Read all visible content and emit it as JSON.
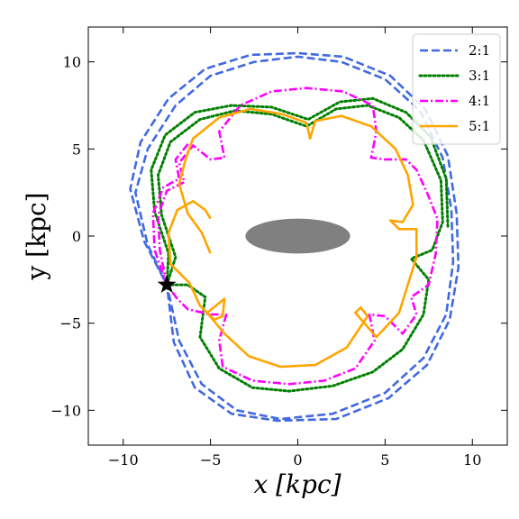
{
  "chart_data": {
    "type": "line",
    "xlabel": "x [kpc]",
    "ylabel": "y [kpc]",
    "xlim": [
      -12,
      12
    ],
    "ylim": [
      -12,
      12
    ],
    "xticks": [
      -10,
      -5,
      0,
      5,
      10
    ],
    "yticks": [
      -10,
      -5,
      0,
      5,
      10
    ],
    "xtick_labels": [
      "−10",
      "−5",
      "0",
      "5",
      "10"
    ],
    "ytick_labels": [
      "−10",
      "−5",
      "0",
      "5",
      "10"
    ],
    "grid": false,
    "legend_position": "top-right",
    "bar": {
      "center": [
        0,
        0
      ],
      "semi_axes": [
        3.0,
        1.0
      ],
      "color": "#808080"
    },
    "sun_marker": {
      "x": -7.5,
      "y": -2.8,
      "symbol": "star"
    },
    "series": [
      {
        "name": "2:1",
        "color": "#4169E1",
        "style": "dashed",
        "points": [
          [
            -7.5,
            -2.8
          ],
          [
            -8.6,
            -0.5
          ],
          [
            -9.3,
            2.5
          ],
          [
            -8.6,
            5.0
          ],
          [
            -7.0,
            7.5
          ],
          [
            -5.0,
            9.2
          ],
          [
            -2.5,
            10.0
          ],
          [
            0,
            10.3
          ],
          [
            2.5,
            10.0
          ],
          [
            5.0,
            9.0
          ],
          [
            7.0,
            7.2
          ],
          [
            8.3,
            4.5
          ],
          [
            8.8,
            1.5
          ],
          [
            8.9,
            -1.5
          ],
          [
            8.5,
            -4.5
          ],
          [
            7.2,
            -7.0
          ],
          [
            5.0,
            -9.0
          ],
          [
            2.0,
            -10.2
          ],
          [
            -1.0,
            -10.5
          ],
          [
            -3.5,
            -10.0
          ],
          [
            -5.5,
            -8.5
          ],
          [
            -6.8,
            -6.0
          ],
          [
            -7.5,
            -2.8
          ],
          [
            -8.8,
            -0.3
          ],
          [
            -9.6,
            2.7
          ],
          [
            -9.0,
            5.4
          ],
          [
            -7.4,
            7.9
          ],
          [
            -5.3,
            9.6
          ],
          [
            -2.7,
            10.4
          ],
          [
            0,
            10.5
          ],
          [
            2.6,
            10.3
          ],
          [
            5.3,
            9.2
          ],
          [
            7.3,
            7.3
          ],
          [
            8.6,
            4.6
          ],
          [
            9.1,
            1.3
          ],
          [
            9.2,
            -1.8
          ],
          [
            8.7,
            -4.8
          ],
          [
            7.4,
            -7.4
          ],
          [
            5.2,
            -9.3
          ],
          [
            2.2,
            -10.5
          ],
          [
            -1.2,
            -10.6
          ],
          [
            -3.8,
            -10.2
          ],
          [
            -5.9,
            -8.7
          ],
          [
            -7.1,
            -6.1
          ],
          [
            -7.5,
            -2.8
          ]
        ]
      },
      {
        "name": "3:1",
        "color": "#008000",
        "style": "dotted",
        "points": [
          [
            -7.5,
            -2.8
          ],
          [
            -7.0,
            -1.2
          ],
          [
            -7.8,
            1.2
          ],
          [
            -8.0,
            3.5
          ],
          [
            -7.3,
            5.4
          ],
          [
            -5.6,
            6.7
          ],
          [
            -3.6,
            7.2
          ],
          [
            -1.5,
            7.0
          ],
          [
            0.5,
            6.3
          ],
          [
            2.2,
            7.3
          ],
          [
            4.0,
            7.5
          ],
          [
            5.8,
            6.8
          ],
          [
            7.2,
            5.5
          ],
          [
            8.2,
            3.2
          ],
          [
            8.3,
            0.8
          ],
          [
            7.7,
            -0.8
          ],
          [
            6.5,
            -1.3
          ],
          [
            7.5,
            -2.5
          ],
          [
            7.2,
            -4.5
          ],
          [
            6.0,
            -6.5
          ],
          [
            4.3,
            -7.8
          ],
          [
            2.0,
            -8.6
          ],
          [
            -0.5,
            -8.9
          ],
          [
            -2.6,
            -8.7
          ],
          [
            -4.5,
            -7.6
          ],
          [
            -5.6,
            -5.8
          ],
          [
            -5.3,
            -3.5
          ],
          [
            -6.3,
            -2.8
          ],
          [
            -7.5,
            -2.8
          ],
          [
            -7.4,
            -1.0
          ],
          [
            -8.2,
            1.4
          ],
          [
            -8.4,
            3.8
          ],
          [
            -7.6,
            5.8
          ],
          [
            -5.9,
            7.1
          ],
          [
            -3.8,
            7.5
          ],
          [
            -1.5,
            7.4
          ],
          [
            0.6,
            6.7
          ],
          [
            2.4,
            7.7
          ],
          [
            4.3,
            7.9
          ],
          [
            6.2,
            7.1
          ],
          [
            7.6,
            5.7
          ],
          [
            8.5,
            3.3
          ],
          [
            8.6,
            0.5
          ]
        ]
      },
      {
        "name": "4:1",
        "color": "#FF00FF",
        "style": "dashdot",
        "points": [
          [
            -7.5,
            -2.8
          ],
          [
            -7.9,
            -0.8
          ],
          [
            -8.0,
            1.2
          ],
          [
            -7.5,
            2.6
          ],
          [
            -6.5,
            3.1
          ],
          [
            -6.8,
            4.2
          ],
          [
            -6.0,
            5.2
          ],
          [
            -5.0,
            4.4
          ],
          [
            -4.2,
            4.5
          ],
          [
            -4.5,
            6.0
          ],
          [
            -3.3,
            7.5
          ],
          [
            -1.5,
            8.3
          ],
          [
            0.5,
            8.5
          ],
          [
            2.6,
            8.3
          ],
          [
            4.3,
            7.5
          ],
          [
            4.5,
            6.0
          ],
          [
            4.2,
            4.5
          ],
          [
            5.0,
            4.4
          ],
          [
            6.2,
            4.4
          ],
          [
            6.8,
            3.8
          ],
          [
            7.4,
            2.5
          ],
          [
            8.0,
            1.0
          ],
          [
            7.9,
            -1.0
          ],
          [
            7.5,
            -2.8
          ],
          [
            6.5,
            -3.5
          ],
          [
            6.8,
            -4.5
          ],
          [
            6.0,
            -5.6
          ],
          [
            5.0,
            -4.6
          ],
          [
            4.1,
            -4.5
          ],
          [
            4.4,
            -6.0
          ],
          [
            3.3,
            -7.6
          ],
          [
            1.5,
            -8.3
          ],
          [
            -0.5,
            -8.5
          ],
          [
            -2.6,
            -8.3
          ],
          [
            -4.3,
            -7.5
          ],
          [
            -4.5,
            -6.0
          ],
          [
            -4.1,
            -4.5
          ],
          [
            -5.0,
            -4.5
          ],
          [
            -6.3,
            -4.2
          ],
          [
            -6.9,
            -3.6
          ],
          [
            -7.5,
            -2.8
          ],
          [
            -8.2,
            -0.8
          ],
          [
            -8.3,
            1.3
          ],
          [
            -7.7,
            2.8
          ],
          [
            -6.8,
            3.3
          ],
          [
            -7.0,
            4.4
          ],
          [
            -6.2,
            5.4
          ]
        ]
      },
      {
        "name": "5:1",
        "color": "#FFA500",
        "style": "solid",
        "points": [
          [
            -5.0,
            -1.0
          ],
          [
            -5.5,
            0.2
          ],
          [
            -6.3,
            1.3
          ],
          [
            -6.8,
            3.0
          ],
          [
            -6.4,
            4.5
          ],
          [
            -6.0,
            5.6
          ],
          [
            -4.5,
            6.8
          ],
          [
            -2.7,
            7.3
          ],
          [
            -0.9,
            7.0
          ],
          [
            0.5,
            6.5
          ],
          [
            0.7,
            5.6
          ],
          [
            1.0,
            6.6
          ],
          [
            2.5,
            6.9
          ],
          [
            4.2,
            6.3
          ],
          [
            5.6,
            5.0
          ],
          [
            6.3,
            3.5
          ],
          [
            6.6,
            1.8
          ],
          [
            6.0,
            0.8
          ],
          [
            5.3,
            0.9
          ],
          [
            5.8,
            0.4
          ],
          [
            6.8,
            0.4
          ],
          [
            6.8,
            -1.2
          ],
          [
            6.3,
            -2.8
          ],
          [
            5.8,
            -4.4
          ],
          [
            4.5,
            -5.8
          ],
          [
            3.3,
            -4.4
          ],
          [
            3.6,
            -4.1
          ],
          [
            4.0,
            -4.6
          ],
          [
            2.8,
            -6.4
          ],
          [
            1.0,
            -7.4
          ],
          [
            -1.0,
            -7.5
          ],
          [
            -2.8,
            -6.9
          ],
          [
            -4.2,
            -5.6
          ],
          [
            -5.2,
            -4.4
          ],
          [
            -4.2,
            -3.6
          ],
          [
            -4.3,
            -4.6
          ],
          [
            -4.8,
            -4.8
          ],
          [
            -5.6,
            -4.0
          ],
          [
            -6.2,
            -2.7
          ],
          [
            -7.3,
            -1.6
          ],
          [
            -7.4,
            0.2
          ],
          [
            -6.9,
            1.5
          ],
          [
            -6.0,
            2.0
          ],
          [
            -5.3,
            1.5
          ],
          [
            -5.0,
            1.0
          ]
        ]
      }
    ]
  }
}
